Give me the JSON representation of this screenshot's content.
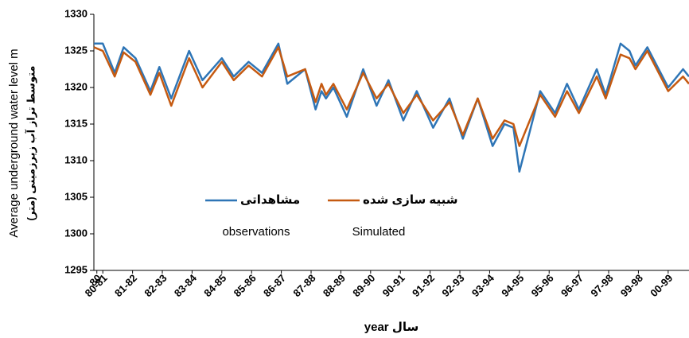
{
  "chart_data": {
    "type": "line",
    "y_label": "Average underground water level m",
    "y_label_fa": "متوسط تراز آب زیرزمینی (متر)",
    "x_label": "year سال",
    "x": [
      0.7,
      1.0,
      1.4,
      1.7,
      2.1,
      2.6,
      2.9,
      3.3,
      3.9,
      4.35,
      5.0,
      5.4,
      5.9,
      6.35,
      6.9,
      7.2,
      7.8,
      8.15,
      8.35,
      8.5,
      8.75,
      9.2,
      9.75,
      10.2,
      10.6,
      11.1,
      11.55,
      12.1,
      12.65,
      13.1,
      13.6,
      14.1,
      14.5,
      14.8,
      15.0,
      15.7,
      16.2,
      16.6,
      17.0,
      17.6,
      17.9,
      18.4,
      18.7,
      18.9,
      19.3,
      20.0,
      20.5,
      20.7
    ],
    "series": [
      {
        "name": "مشاهداتی",
        "label_en": "observations",
        "color": "#2e75b6",
        "values": [
          1326,
          1326,
          1322,
          1325.5,
          1324,
          1319.5,
          1322.8,
          1318.5,
          1325,
          1321,
          1324,
          1321.5,
          1323.5,
          1322,
          1326,
          1320.5,
          1322.5,
          1317,
          1319.5,
          1318.5,
          1320,
          1316,
          1322.5,
          1317.5,
          1321,
          1315.5,
          1319.5,
          1314.5,
          1318.5,
          1313,
          1318.5,
          1312,
          1315,
          1314.5,
          1308.5,
          1319.5,
          1316.5,
          1320.5,
          1317,
          1322.5,
          1319,
          1326,
          1325,
          1323,
          1325.5,
          1320,
          1322.5,
          1321.5
        ]
      },
      {
        "name": "شبیه سازی شده",
        "label_en": "Simulated",
        "color": "#c55a11",
        "values": [
          1325.5,
          1325,
          1321.5,
          1324.8,
          1323.5,
          1319,
          1322,
          1317.5,
          1324,
          1320,
          1323.5,
          1321,
          1323,
          1321.5,
          1325.5,
          1321.5,
          1322.5,
          1318,
          1320.5,
          1319,
          1320.5,
          1317,
          1322,
          1318.5,
          1320.5,
          1316.5,
          1319,
          1315.5,
          1318,
          1313.5,
          1318.5,
          1313,
          1315.5,
          1315,
          1312,
          1319,
          1316,
          1319.5,
          1316.5,
          1321.5,
          1318.5,
          1324.5,
          1324,
          1322.5,
          1325,
          1319.5,
          1321.5,
          1320.5
        ]
      }
    ],
    "xlim": [
      0.7,
      20.7
    ],
    "xticks": [
      {
        "value": 0.8,
        "label": "80"
      },
      {
        "value": 1,
        "label": "80-81"
      },
      {
        "value": 2,
        "label": "81-82"
      },
      {
        "value": 3,
        "label": "82-83"
      },
      {
        "value": 4,
        "label": "83-84"
      },
      {
        "value": 5,
        "label": "84-85"
      },
      {
        "value": 6,
        "label": "85-86"
      },
      {
        "value": 7,
        "label": "86-87"
      },
      {
        "value": 8,
        "label": "87-88"
      },
      {
        "value": 9,
        "label": "88-89"
      },
      {
        "value": 10,
        "label": "89-90"
      },
      {
        "value": 11,
        "label": "90-91"
      },
      {
        "value": 12,
        "label": "91-92"
      },
      {
        "value": 13,
        "label": "92-93"
      },
      {
        "value": 14,
        "label": "93-94"
      },
      {
        "value": 15,
        "label": "94-95"
      },
      {
        "value": 16,
        "label": "95-96"
      },
      {
        "value": 17,
        "label": "96-97"
      },
      {
        "value": 18,
        "label": "97-98"
      },
      {
        "value": 19,
        "label": "99-98"
      },
      {
        "value": 20,
        "label": "00-99"
      }
    ],
    "ylim": [
      1295,
      1330
    ],
    "yticks": [
      1295,
      1300,
      1305,
      1310,
      1315,
      1320,
      1325,
      1330
    ],
    "grid": false
  }
}
